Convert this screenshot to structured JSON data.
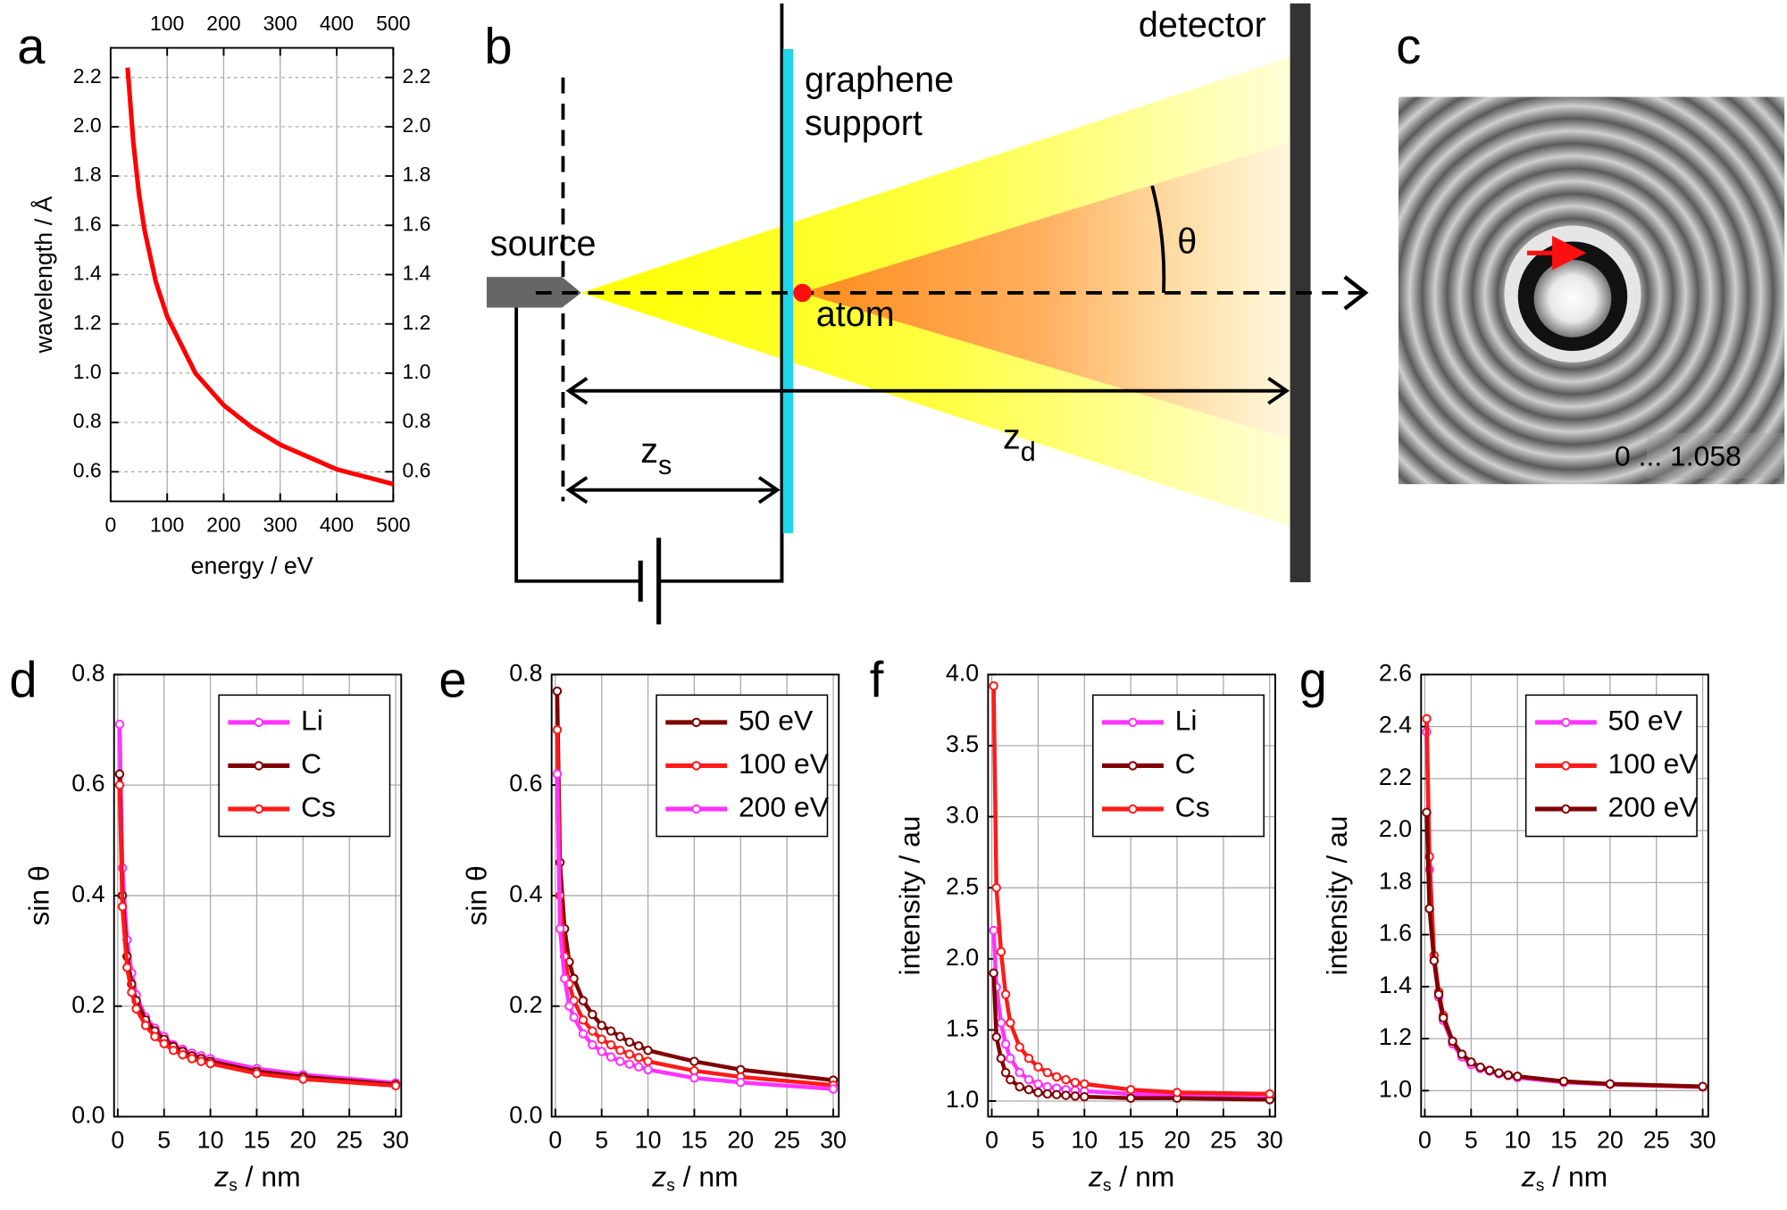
{
  "chart_data": [
    {
      "type": "line",
      "panel": "a",
      "xlabel": "energy / eV",
      "ylabel": "wavelength / Å",
      "grid": true,
      "x": [
        30,
        40,
        50,
        60,
        80,
        100,
        150,
        200,
        250,
        300,
        350,
        400,
        450,
        500
      ],
      "series": [
        {
          "color": "#ff0000",
          "values": [
            2.24,
            1.94,
            1.73,
            1.58,
            1.37,
            1.23,
            1.0,
            0.87,
            0.78,
            0.71,
            0.66,
            0.61,
            0.58,
            0.55
          ]
        }
      ],
      "xlim": [
        0,
        500
      ],
      "xticks": [
        0,
        100,
        200,
        300,
        400,
        500
      ],
      "x2ticks": [
        100,
        200,
        300,
        400,
        500
      ],
      "ylim": [
        0.48,
        2.32
      ],
      "yticks": [
        0.6,
        0.8,
        {
          "value": 1,
          "label": "1.0"
        },
        1.2,
        1.4,
        1.6,
        1.8,
        {
          "value": 2,
          "label": "2.0"
        },
        2.2
      ],
      "y2lim": [
        0.48,
        2.32
      ],
      "y2ticks": [
        0.6,
        0.8,
        {
          "value": 1,
          "label": "1.0"
        },
        1.2,
        1.4,
        1.6,
        1.8,
        {
          "value": 2,
          "label": "2.0"
        },
        2.2
      ]
    },
    {
      "type": "line",
      "panel": "d",
      "markers": true,
      "legend": "upper right",
      "grid": true,
      "xlabel": [
        "z",
        "s",
        " / nm"
      ],
      "ylabel": "sin θ",
      "x": [
        0.2,
        0.5,
        1,
        1.5,
        2,
        3,
        4,
        5,
        6,
        7,
        8,
        9,
        10,
        15,
        20,
        30
      ],
      "series": [
        {
          "name": "Li",
          "color": "#ff33ff",
          "values": [
            0.71,
            0.45,
            0.32,
            0.26,
            0.22,
            0.18,
            0.16,
            0.145,
            0.13,
            0.122,
            0.115,
            0.11,
            0.105,
            0.087,
            0.076,
            0.061
          ]
        },
        {
          "name": "C",
          "color": "#800000",
          "values": [
            0.62,
            0.4,
            0.29,
            0.24,
            0.21,
            0.175,
            0.155,
            0.14,
            0.127,
            0.118,
            0.11,
            0.105,
            0.1,
            0.082,
            0.072,
            0.058
          ]
        },
        {
          "name": "Cs",
          "color": "#ff1a1a",
          "values": [
            0.6,
            0.38,
            0.27,
            0.225,
            0.195,
            0.165,
            0.145,
            0.132,
            0.12,
            0.112,
            0.105,
            0.1,
            0.096,
            0.078,
            0.068,
            0.056
          ]
        }
      ],
      "xlim": [
        -0.4,
        30.6
      ],
      "xticks": [
        0,
        5,
        10,
        15,
        20,
        25,
        30
      ],
      "ylim": [
        0,
        0.8
      ],
      "yticks": [
        {
          "value": 0,
          "label": "0.0"
        },
        0.2,
        0.4,
        0.6,
        0.8
      ]
    },
    {
      "type": "line",
      "panel": "e",
      "markers": true,
      "legend": "upper right",
      "grid": true,
      "xlabel": [
        "z",
        "s",
        " / nm"
      ],
      "ylabel": "sin θ",
      "x": [
        0.2,
        0.5,
        1,
        1.5,
        2,
        3,
        4,
        5,
        6,
        7,
        8,
        9,
        10,
        15,
        20,
        30
      ],
      "series": [
        {
          "name": "50 eV",
          "color": "#800000",
          "values": [
            0.77,
            0.46,
            0.34,
            0.28,
            0.25,
            0.21,
            0.185,
            0.165,
            0.155,
            0.145,
            0.135,
            0.128,
            0.12,
            0.1,
            0.085,
            0.066
          ]
        },
        {
          "name": "100 eV",
          "color": "#ff1a1a",
          "values": [
            0.7,
            0.4,
            0.29,
            0.24,
            0.21,
            0.175,
            0.155,
            0.14,
            0.13,
            0.12,
            0.113,
            0.107,
            0.1,
            0.083,
            0.072,
            0.057
          ]
        },
        {
          "name": "200 eV",
          "color": "#ff33ff",
          "values": [
            0.62,
            0.34,
            0.25,
            0.2,
            0.18,
            0.15,
            0.13,
            0.118,
            0.108,
            0.1,
            0.095,
            0.09,
            0.085,
            0.07,
            0.062,
            0.05
          ]
        }
      ],
      "xlim": [
        -0.4,
        30.6
      ],
      "xticks": [
        0,
        5,
        10,
        15,
        20,
        25,
        30
      ],
      "ylim": [
        0,
        0.8
      ],
      "yticks": [
        {
          "value": 0,
          "label": "0.0"
        },
        0.2,
        0.4,
        0.6,
        0.8
      ]
    },
    {
      "type": "line",
      "panel": "f",
      "markers": true,
      "legend": "upper right",
      "grid": true,
      "xlabel": [
        "z",
        "s",
        " / nm"
      ],
      "ylabel": "intensity / au",
      "x": [
        0.2,
        0.5,
        1,
        1.5,
        2,
        3,
        4,
        5,
        6,
        7,
        8,
        9,
        10,
        15,
        20,
        30
      ],
      "series": [
        {
          "name": "Li",
          "color": "#ff33ff",
          "values": [
            2.2,
            1.8,
            1.55,
            1.4,
            1.3,
            1.2,
            1.15,
            1.12,
            1.1,
            1.09,
            1.08,
            1.075,
            1.07,
            1.05,
            1.04,
            1.03
          ]
        },
        {
          "name": "C",
          "color": "#800000",
          "values": [
            1.9,
            1.45,
            1.3,
            1.2,
            1.15,
            1.1,
            1.08,
            1.06,
            1.05,
            1.045,
            1.04,
            1.035,
            1.03,
            1.02,
            1.02,
            1.01
          ]
        },
        {
          "name": "Cs",
          "color": "#ff1a1a",
          "values": [
            3.92,
            2.5,
            2.05,
            1.75,
            1.55,
            1.38,
            1.3,
            1.24,
            1.2,
            1.17,
            1.15,
            1.13,
            1.12,
            1.08,
            1.06,
            1.05
          ]
        }
      ],
      "xlim": [
        -0.4,
        30.6
      ],
      "xticks": [
        0,
        5,
        10,
        15,
        20,
        25,
        30
      ],
      "ylim": [
        0.89,
        4.0
      ],
      "yticks": [
        {
          "value": 1,
          "label": "1.0"
        },
        1.5,
        {
          "value": 2,
          "label": "2.0"
        },
        2.5,
        {
          "value": 3,
          "label": "3.0"
        },
        3.5,
        {
          "value": 4,
          "label": "4.0"
        }
      ]
    },
    {
      "type": "line",
      "panel": "g",
      "markers": true,
      "legend": "upper right",
      "grid": true,
      "xlabel": [
        "z",
        "s",
        " / nm"
      ],
      "ylabel": "intensity / au",
      "x": [
        0.2,
        0.5,
        1,
        1.5,
        2,
        3,
        4,
        5,
        6,
        7,
        8,
        9,
        10,
        15,
        20,
        30
      ],
      "series": [
        {
          "name": "50 eV",
          "color": "#ff33ff",
          "values": [
            2.38,
            1.85,
            1.5,
            1.36,
            1.27,
            1.18,
            1.13,
            1.1,
            1.085,
            1.075,
            1.065,
            1.058,
            1.05,
            1.032,
            1.024,
            1.014
          ]
        },
        {
          "name": "100 eV",
          "color": "#ff1a1a",
          "values": [
            2.43,
            1.9,
            1.52,
            1.38,
            1.29,
            1.19,
            1.14,
            1.11,
            1.09,
            1.078,
            1.068,
            1.06,
            1.055,
            1.035,
            1.025,
            1.015
          ]
        },
        {
          "name": "200 eV",
          "color": "#800000",
          "values": [
            2.07,
            1.7,
            1.5,
            1.37,
            1.28,
            1.19,
            1.14,
            1.11,
            1.09,
            1.078,
            1.068,
            1.06,
            1.055,
            1.036,
            1.026,
            1.016
          ]
        }
      ],
      "xlim": [
        -0.4,
        30.6
      ],
      "xticks": [
        0,
        5,
        10,
        15,
        20,
        25,
        30
      ],
      "ylim": [
        0.9,
        2.6
      ],
      "yticks": [
        {
          "value": 1,
          "label": "1.0"
        },
        1.2,
        1.4,
        1.6,
        1.8,
        {
          "value": 2,
          "label": "2.0"
        },
        2.2,
        2.4,
        2.6
      ]
    }
  ],
  "diagram": {
    "panel": "b",
    "detector": "detector",
    "support": [
      "graphene",
      "support"
    ],
    "source": "source",
    "angle": "θ",
    "atom": "atom",
    "zs": [
      "z",
      "s"
    ],
    "zd": [
      "z",
      "d"
    ]
  },
  "image": {
    "panel": "c",
    "caption": "0 ... 1.058"
  }
}
